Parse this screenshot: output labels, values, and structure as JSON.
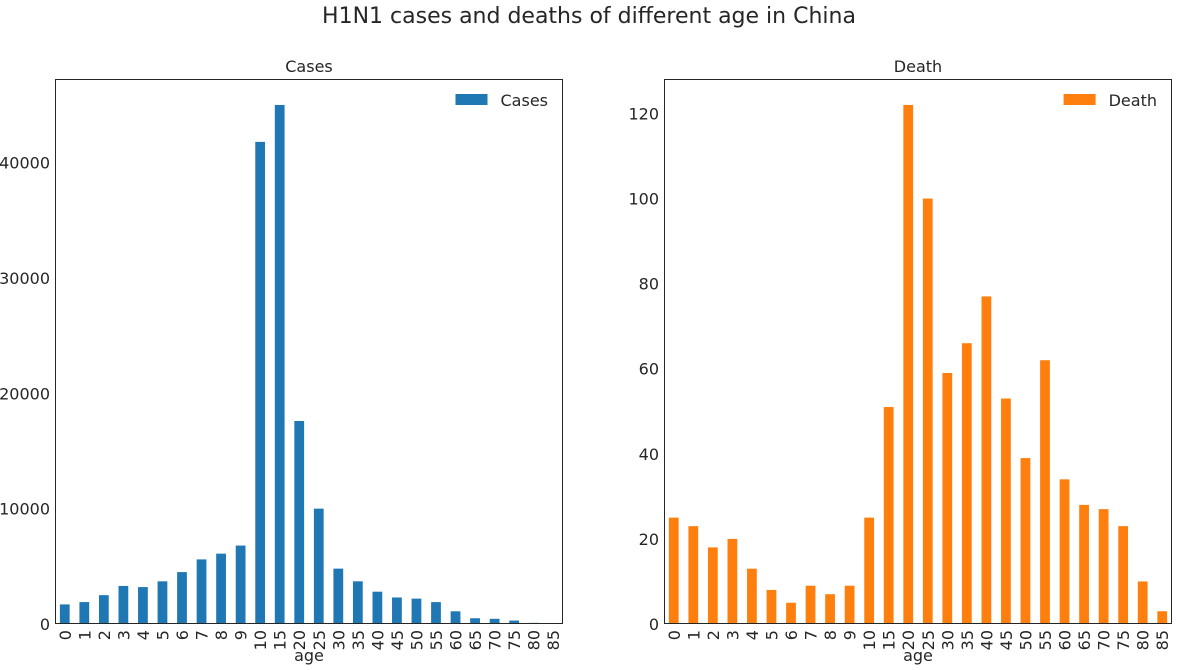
{
  "figure": {
    "title": "H1N1 cases and deaths of different age in China"
  },
  "chart_data": [
    {
      "type": "bar",
      "title": "Cases",
      "xlabel": "age",
      "ylabel": "",
      "categories": [
        "0",
        "1",
        "2",
        "3",
        "4",
        "5",
        "6",
        "7",
        "8",
        "9",
        "10",
        "15",
        "20",
        "25",
        "30",
        "35",
        "40",
        "45",
        "50",
        "55",
        "60",
        "65",
        "70",
        "75",
        "80",
        "85"
      ],
      "series": [
        {
          "name": "Cases",
          "color": "#1f77b4",
          "values": [
            1700,
            1900,
            2500,
            3300,
            3200,
            3700,
            4500,
            5600,
            6100,
            6800,
            41800,
            45000,
            17600,
            10000,
            4800,
            3700,
            2800,
            2300,
            2200,
            1900,
            1100,
            500,
            450,
            300,
            100,
            10
          ]
        }
      ],
      "ylim": [
        0,
        47250
      ],
      "yticks": [
        0,
        10000,
        20000,
        30000,
        40000
      ],
      "grid": false,
      "legend": "top-right"
    },
    {
      "type": "bar",
      "title": "Death",
      "xlabel": "age",
      "ylabel": "",
      "categories": [
        "0",
        "1",
        "2",
        "3",
        "4",
        "5",
        "6",
        "7",
        "8",
        "9",
        "10",
        "15",
        "20",
        "25",
        "30",
        "35",
        "40",
        "45",
        "50",
        "55",
        "60",
        "65",
        "70",
        "75",
        "80",
        "85"
      ],
      "series": [
        {
          "name": "Death",
          "color": "#ff7f0e",
          "values": [
            25,
            23,
            18,
            20,
            13,
            8,
            5,
            9,
            7,
            9,
            25,
            51,
            122,
            100,
            59,
            66,
            77,
            53,
            39,
            62,
            34,
            28,
            27,
            23,
            10,
            3
          ]
        }
      ],
      "ylim": [
        0,
        128.1
      ],
      "yticks": [
        0,
        20,
        40,
        60,
        80,
        100,
        120
      ],
      "grid": false,
      "legend": "top-right"
    }
  ]
}
